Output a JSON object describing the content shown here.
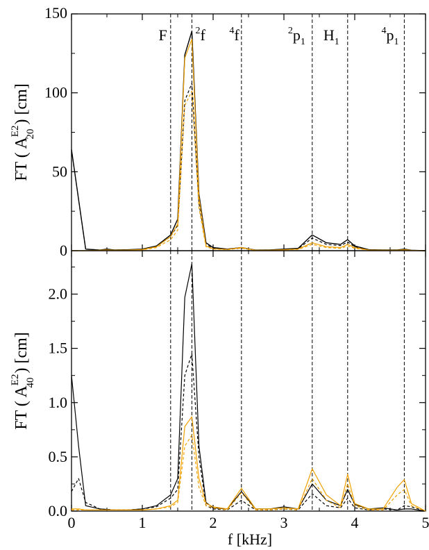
{
  "chart_data": [
    {
      "type": "line",
      "panel": "top",
      "xlabel": "",
      "ylabel_parts": {
        "pre": "FT ( A",
        "sup": "E2",
        "sub": "20",
        "post": " )  [cm]"
      },
      "xlim": [
        0,
        5
      ],
      "ylim": [
        0,
        150
      ],
      "yticks": [
        0,
        50,
        100,
        150
      ],
      "ytick_labels": [
        "0",
        "50",
        "100",
        "150"
      ],
      "xticks": [
        0,
        1,
        2,
        3,
        4,
        5
      ],
      "show_xtick_labels": false,
      "grid": false,
      "vlines": [
        1.4,
        1.7,
        2.4,
        3.4,
        3.9,
        4.7
      ],
      "line_labels": [
        {
          "pre": "",
          "base": "F",
          "sub": "",
          "x": 1.29
        },
        {
          "pre": "2",
          "base": "f",
          "sub": "",
          "x": 1.82
        },
        {
          "pre": "4",
          "base": "f",
          "sub": "",
          "x": 2.3
        },
        {
          "pre": "2",
          "base": "p",
          "sub": "1",
          "x": 3.18
        },
        {
          "pre": "",
          "base": "H",
          "sub": "1",
          "x": 3.67
        },
        {
          "pre": "4",
          "base": "p",
          "sub": "1",
          "x": 4.5
        }
      ],
      "x": [
        0,
        0.2,
        0.4,
        0.5,
        0.6,
        0.8,
        1.0,
        1.2,
        1.4,
        1.5,
        1.6,
        1.7,
        1.8,
        1.9,
        2.0,
        2.2,
        2.4,
        2.6,
        2.8,
        3.0,
        3.2,
        3.4,
        3.6,
        3.8,
        3.9,
        4.0,
        4.2,
        4.4,
        4.6,
        4.7,
        4.8,
        5.0
      ],
      "series": [
        {
          "color": "#000000",
          "dash": "solid",
          "width": 1.4,
          "values": [
            64,
            1,
            0.4,
            1,
            0.5,
            0.6,
            1,
            3,
            10,
            20,
            124,
            139,
            36,
            5,
            2,
            1,
            2,
            0.4,
            0.5,
            1,
            1.5,
            10,
            5,
            4,
            7,
            3,
            0.6,
            0.5,
            0.5,
            1,
            0.3,
            0
          ]
        },
        {
          "color": "#000000",
          "dash": "4,3",
          "width": 1.2,
          "values": [
            64,
            1,
            0.4,
            0.8,
            0.4,
            0.5,
            0.8,
            2.5,
            9,
            16,
            95,
            106,
            30,
            4,
            1.6,
            0.8,
            1.6,
            0.3,
            0.4,
            0.8,
            1.2,
            8,
            4,
            3.2,
            5.5,
            2.4,
            0.5,
            0.4,
            0.4,
            0.8,
            0.2,
            0
          ]
        },
        {
          "color": "#f0a000",
          "dash": "solid",
          "width": 1.2,
          "values": [
            0,
            0,
            0.3,
            0.5,
            0.3,
            0.4,
            0.7,
            2.5,
            9,
            17,
            122,
            134,
            34,
            3,
            1.2,
            0.8,
            2,
            0.3,
            0.3,
            0.6,
            1,
            5,
            2.5,
            2,
            4,
            2,
            0.4,
            0.3,
            0.3,
            0.6,
            0.2,
            0
          ]
        },
        {
          "color": "#f0a000",
          "dash": "4,3",
          "width": 1.2,
          "values": [
            0,
            0,
            0.2,
            0.4,
            0.2,
            0.3,
            0.5,
            2,
            7,
            13,
            92,
            101,
            27,
            2.5,
            1,
            0.6,
            1.6,
            0.2,
            0.2,
            0.5,
            0.8,
            4,
            2,
            1.5,
            3,
            1.5,
            0.3,
            0.2,
            0.2,
            0.5,
            0.1,
            0
          ]
        }
      ]
    },
    {
      "type": "line",
      "panel": "bottom",
      "xlabel": "f [kHz]",
      "ylabel_parts": {
        "pre": "FT ( A",
        "sup": "E2",
        "sub": "40",
        "post": " )  [cm]"
      },
      "xlim": [
        0,
        5
      ],
      "ylim": [
        0,
        2.4
      ],
      "yticks": [
        0,
        0.5,
        1.0,
        1.5,
        2.0
      ],
      "ytick_labels": [
        "0.0",
        "0.5",
        "1.0",
        "1.5",
        "2.0"
      ],
      "xticks": [
        0,
        1,
        2,
        3,
        4,
        5
      ],
      "xtick_labels": [
        "0",
        "1",
        "2",
        "3",
        "4",
        "5"
      ],
      "show_xtick_labels": true,
      "grid": false,
      "vlines": [
        1.4,
        1.7,
        2.4,
        3.4,
        3.9,
        4.7
      ],
      "x": [
        0,
        0.1,
        0.2,
        0.4,
        0.6,
        0.8,
        1.0,
        1.2,
        1.4,
        1.5,
        1.6,
        1.7,
        1.8,
        1.9,
        2.0,
        2.2,
        2.4,
        2.6,
        2.8,
        3.0,
        3.2,
        3.4,
        3.6,
        3.8,
        3.9,
        4.0,
        4.2,
        4.4,
        4.6,
        4.7,
        4.8,
        5.0
      ],
      "series": [
        {
          "color": "#000000",
          "dash": "solid",
          "width": 1.2,
          "values": [
            1.25,
            0.6,
            0.05,
            0.02,
            0.01,
            0.01,
            0.02,
            0.05,
            0.15,
            0.3,
            1.97,
            2.28,
            0.6,
            0.08,
            0.03,
            0.02,
            0.18,
            0.02,
            0.02,
            0.04,
            0.02,
            0.25,
            0.1,
            0.05,
            0.2,
            0.06,
            0.02,
            0.03,
            0.01,
            0.02,
            0.02,
            0
          ]
        },
        {
          "color": "#000000",
          "dash": "4,3",
          "width": 1.2,
          "values": [
            0.18,
            0.3,
            0.08,
            0.02,
            0.01,
            0.01,
            0.02,
            0.04,
            0.12,
            0.2,
            1.25,
            1.45,
            0.5,
            0.05,
            0.02,
            0.01,
            0.1,
            0.01,
            0.01,
            0.02,
            0.01,
            0.16,
            0.05,
            0.03,
            0.12,
            0.03,
            0.01,
            0.02,
            0.01,
            0.05,
            0.04,
            0
          ]
        },
        {
          "color": "#f0a000",
          "dash": "solid",
          "width": 1.2,
          "values": [
            0.02,
            0.02,
            0.01,
            0.01,
            0.01,
            0.01,
            0.01,
            0.02,
            0.05,
            0.1,
            0.78,
            0.87,
            0.3,
            0.07,
            0.04,
            0.02,
            0.21,
            0.02,
            0.02,
            0.03,
            0.02,
            0.39,
            0.15,
            0.05,
            0.34,
            0.07,
            0.02,
            0.02,
            0.22,
            0.29,
            0.07,
            0
          ]
        },
        {
          "color": "#f0a000",
          "dash": "4,3",
          "width": 1.2,
          "values": [
            0.01,
            0.01,
            0.01,
            0.01,
            0.01,
            0.01,
            0.01,
            0.02,
            0.04,
            0.08,
            0.6,
            0.7,
            0.22,
            0.05,
            0.03,
            0.01,
            0.17,
            0.01,
            0.01,
            0.02,
            0.01,
            0.3,
            0.1,
            0.03,
            0.25,
            0.05,
            0.01,
            0.01,
            0.15,
            0.2,
            0.05,
            0
          ]
        }
      ]
    }
  ]
}
